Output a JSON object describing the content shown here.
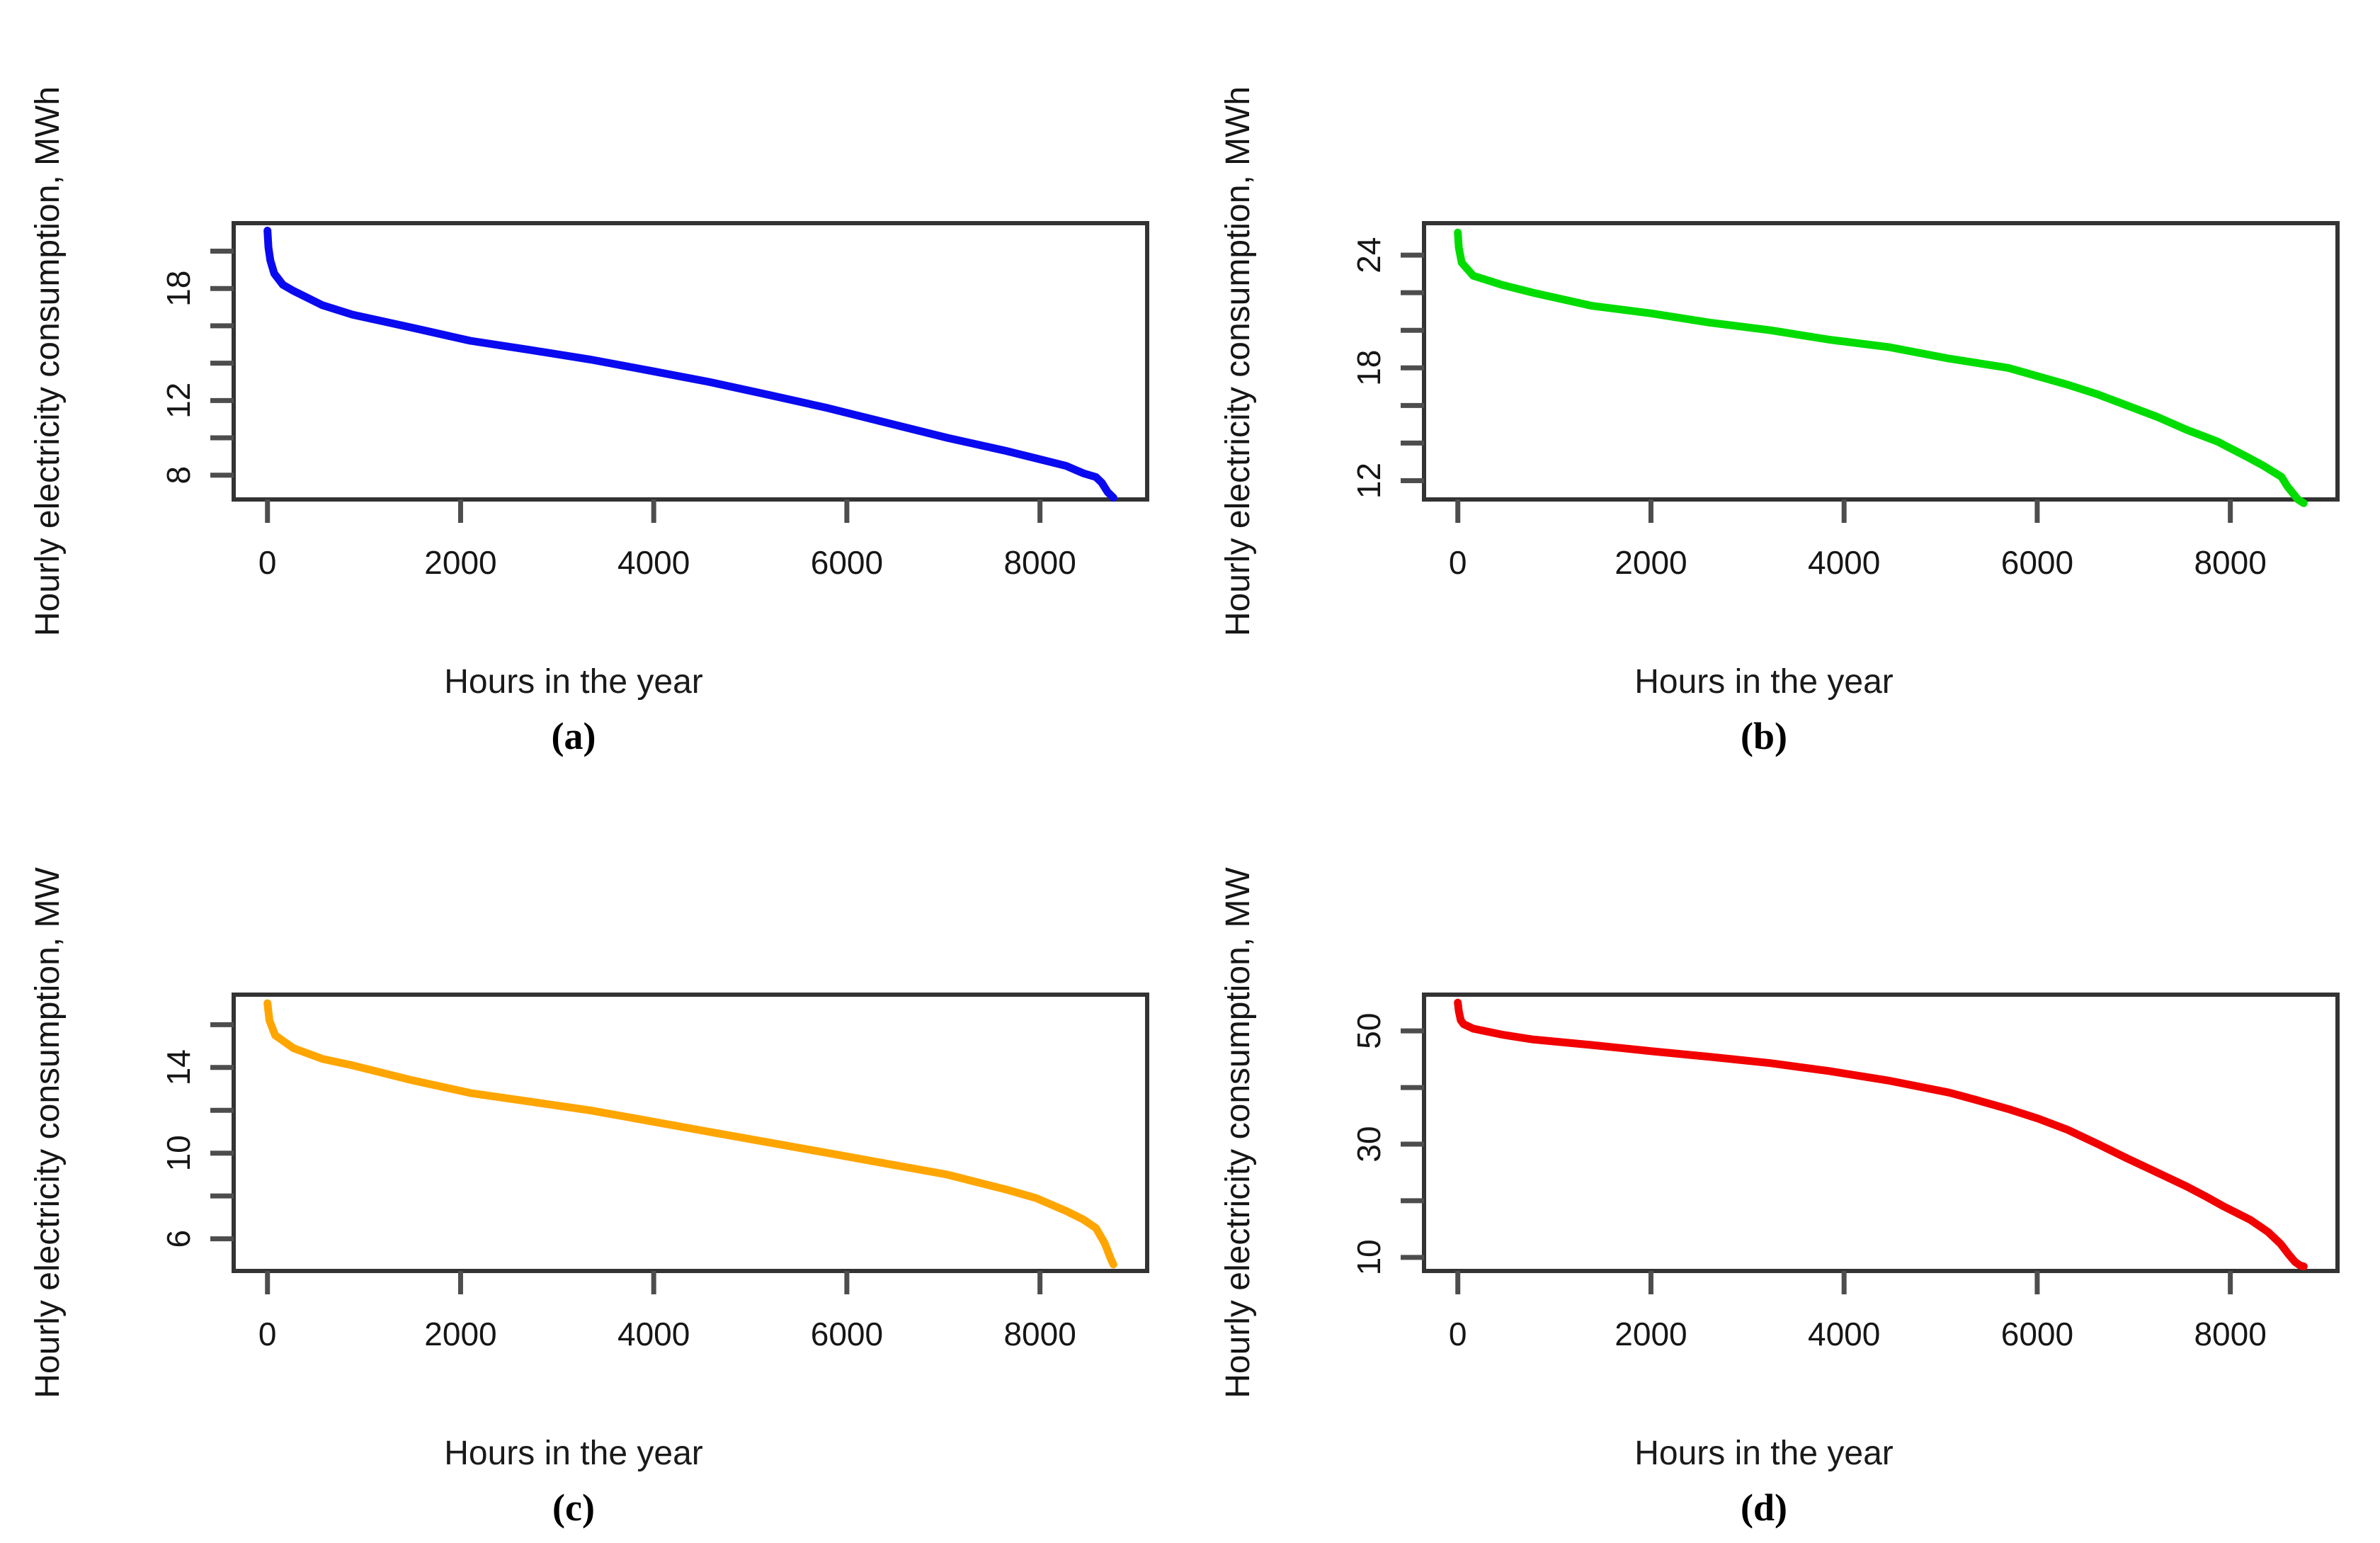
{
  "figure": {
    "background": "#ffffff",
    "box_color": "#333333",
    "tick_color": "#4d4d4d",
    "description": "Four load duration curves of hourly electricity consumption over the hours of a year"
  },
  "chart_data": [
    {
      "type": "line",
      "caption": "(a)",
      "xlabel": "Hours in the year",
      "ylabel": "Hourly electricity consumption, MWh",
      "color": "#0A0AF0",
      "xlim": [
        -350,
        9110
      ],
      "ylim": [
        6.7,
        21.5
      ],
      "x_ticks": [
        0,
        2000,
        4000,
        6000,
        8000
      ],
      "y_ticks": [
        8,
        10,
        12,
        14,
        16,
        18,
        20
      ],
      "y_tick_labels": [
        8,
        12,
        18
      ],
      "legend": "none",
      "grid": false,
      "points": [
        [
          0,
          21.1
        ],
        [
          10,
          20.2
        ],
        [
          30,
          19.5
        ],
        [
          70,
          18.8
        ],
        [
          160,
          18.2
        ],
        [
          260,
          17.9
        ],
        [
          570,
          17.1
        ],
        [
          880,
          16.6
        ],
        [
          1500,
          15.9
        ],
        [
          2100,
          15.2
        ],
        [
          2730,
          14.7
        ],
        [
          3340,
          14.2
        ],
        [
          3960,
          13.6
        ],
        [
          4570,
          13.0
        ],
        [
          5190,
          12.3
        ],
        [
          5800,
          11.6
        ],
        [
          6420,
          10.8
        ],
        [
          7040,
          10.0
        ],
        [
          7650,
          9.3
        ],
        [
          7960,
          8.9
        ],
        [
          8270,
          8.5
        ],
        [
          8450,
          8.1
        ],
        [
          8580,
          7.9
        ],
        [
          8640,
          7.6
        ],
        [
          8700,
          7.1
        ],
        [
          8760,
          6.8
        ]
      ]
    },
    {
      "type": "line",
      "caption": "(b)",
      "xlabel": "Hours in the year",
      "ylabel": "Hourly electricity consumption, MWh",
      "color": "#00DC00",
      "xlim": [
        -350,
        9110
      ],
      "ylim": [
        11.0,
        25.7
      ],
      "x_ticks": [
        0,
        2000,
        4000,
        6000,
        8000
      ],
      "y_ticks": [
        12,
        14,
        16,
        18,
        20,
        22,
        24
      ],
      "y_tick_labels": [
        12,
        18,
        24
      ],
      "legend": "none",
      "grid": false,
      "points": [
        [
          0,
          25.2
        ],
        [
          10,
          24.4
        ],
        [
          40,
          23.6
        ],
        [
          160,
          22.9
        ],
        [
          470,
          22.4
        ],
        [
          780,
          22.0
        ],
        [
          1390,
          21.3
        ],
        [
          2000,
          20.9
        ],
        [
          2620,
          20.4
        ],
        [
          3240,
          20.0
        ],
        [
          3850,
          19.5
        ],
        [
          4470,
          19.1
        ],
        [
          5080,
          18.5
        ],
        [
          5700,
          18.0
        ],
        [
          6320,
          17.1
        ],
        [
          6620,
          16.6
        ],
        [
          6930,
          16.0
        ],
        [
          7240,
          15.4
        ],
        [
          7550,
          14.7
        ],
        [
          7860,
          14.1
        ],
        [
          8160,
          13.3
        ],
        [
          8340,
          12.8
        ],
        [
          8530,
          12.2
        ],
        [
          8590,
          11.7
        ],
        [
          8700,
          11.0
        ],
        [
          8760,
          10.8
        ]
      ]
    },
    {
      "type": "line",
      "caption": "(c)",
      "xlabel": "Hours in the year",
      "ylabel": "Hourly electricity consumption, MW",
      "color": "#FFA500",
      "xlim": [
        -350,
        9110
      ],
      "ylim": [
        4.5,
        17.4
      ],
      "x_ticks": [
        0,
        2000,
        4000,
        6000,
        8000
      ],
      "y_ticks": [
        6,
        8,
        10,
        12,
        14,
        16
      ],
      "y_tick_labels": [
        6,
        10,
        14
      ],
      "legend": "none",
      "grid": false,
      "points": [
        [
          0,
          17.0
        ],
        [
          20,
          16.2
        ],
        [
          80,
          15.5
        ],
        [
          270,
          14.9
        ],
        [
          570,
          14.4
        ],
        [
          880,
          14.1
        ],
        [
          1500,
          13.4
        ],
        [
          2110,
          12.8
        ],
        [
          2730,
          12.4
        ],
        [
          3340,
          12.0
        ],
        [
          3960,
          11.5
        ],
        [
          4570,
          11.0
        ],
        [
          5190,
          10.5
        ],
        [
          5810,
          10.0
        ],
        [
          6420,
          9.5
        ],
        [
          7040,
          9.0
        ],
        [
          7650,
          8.3
        ],
        [
          7960,
          7.9
        ],
        [
          8270,
          7.3
        ],
        [
          8450,
          6.9
        ],
        [
          8580,
          6.5
        ],
        [
          8670,
          5.8
        ],
        [
          8730,
          5.1
        ],
        [
          8760,
          4.8
        ]
      ]
    },
    {
      "type": "line",
      "caption": "(d)",
      "xlabel": "Hours in the year",
      "ylabel": "Hourly electricity consumption, MW",
      "color": "#F20000",
      "xlim": [
        -350,
        9110
      ],
      "ylim": [
        7.6,
        56.4
      ],
      "x_ticks": [
        0,
        2000,
        4000,
        6000,
        8000
      ],
      "y_ticks": [
        10,
        20,
        30,
        40,
        50
      ],
      "y_tick_labels": [
        10,
        30,
        50
      ],
      "legend": "none",
      "grid": false,
      "points": [
        [
          0,
          55.0
        ],
        [
          10,
          53.5
        ],
        [
          30,
          51.9
        ],
        [
          60,
          51.2
        ],
        [
          160,
          50.4
        ],
        [
          470,
          49.3
        ],
        [
          770,
          48.5
        ],
        [
          1390,
          47.5
        ],
        [
          2010,
          46.4
        ],
        [
          2620,
          45.4
        ],
        [
          3240,
          44.3
        ],
        [
          3850,
          42.9
        ],
        [
          4470,
          41.2
        ],
        [
          5090,
          39.1
        ],
        [
          5390,
          37.7
        ],
        [
          5700,
          36.2
        ],
        [
          6010,
          34.5
        ],
        [
          6320,
          32.5
        ],
        [
          6630,
          30.0
        ],
        [
          6930,
          27.5
        ],
        [
          7240,
          25.0
        ],
        [
          7550,
          22.5
        ],
        [
          7730,
          20.9
        ],
        [
          7920,
          19.1
        ],
        [
          8210,
          16.6
        ],
        [
          8390,
          14.5
        ],
        [
          8520,
          12.4
        ],
        [
          8610,
          10.4
        ],
        [
          8670,
          9.2
        ],
        [
          8720,
          8.6
        ],
        [
          8760,
          8.4
        ]
      ]
    }
  ]
}
